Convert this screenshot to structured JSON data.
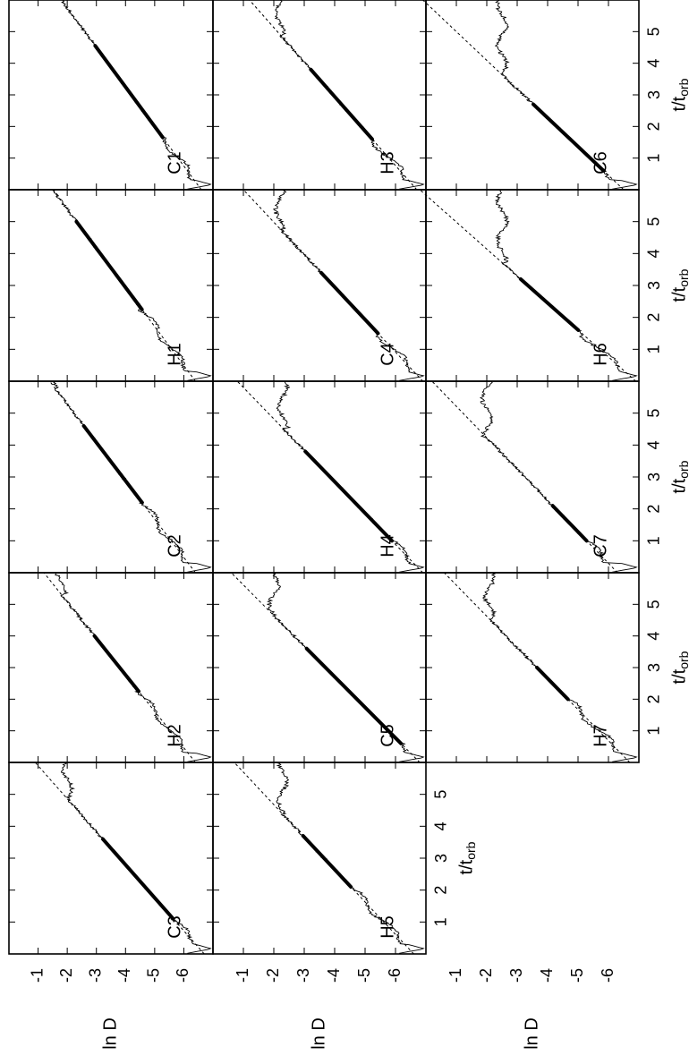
{
  "figure": {
    "ylabel": "ln D",
    "xlabel": "t/t_orb",
    "xlabel_main": "t/t",
    "xlabel_sub": "orb",
    "y_ticks": [
      "-1",
      "-2",
      "-3",
      "-4",
      "-5",
      "-6"
    ],
    "x_ticks": [
      "1",
      "2",
      "3",
      "4",
      "5"
    ],
    "orientation": "rotated 90 degrees counter-clockwise"
  },
  "chart_data": [
    {
      "type": "line",
      "label": "C1",
      "row": 0,
      "col": 0,
      "xlim": [
        0,
        6
      ],
      "ylim": [
        -7,
        0
      ],
      "fit_line": {
        "x": [
          0,
          6
        ],
        "y": [
          -6.6,
          -1.8
        ]
      },
      "bold_range": [
        1.65,
        4.55
      ],
      "plateau": -1.6,
      "has_fit_highlight": true
    },
    {
      "type": "line",
      "label": "H1",
      "row": 0,
      "col": 1,
      "xlim": [
        0,
        6
      ],
      "ylim": [
        -7,
        0
      ],
      "fit_line": {
        "x": [
          0,
          6
        ],
        "y": [
          -6.4,
          -1.5
        ]
      },
      "bold_range": [
        2.25,
        5.0
      ],
      "plateau": -1.5,
      "has_fit_highlight": true
    },
    {
      "type": "line",
      "label": "C2",
      "row": 0,
      "col": 2,
      "xlim": [
        0,
        6
      ],
      "ylim": [
        -7,
        0
      ],
      "fit_line": {
        "x": [
          0,
          6
        ],
        "y": [
          -6.4,
          -1.4
        ]
      },
      "bold_range": [
        2.2,
        4.6
      ],
      "plateau": -1.6,
      "has_fit_highlight": true
    },
    {
      "type": "line",
      "label": "H2",
      "row": 0,
      "col": 3,
      "xlim": [
        0,
        6
      ],
      "ylim": [
        -7,
        0
      ],
      "fit_line": {
        "x": [
          0,
          6
        ],
        "y": [
          -6.4,
          -1.2
        ]
      },
      "bold_range": [
        2.25,
        4.0
      ],
      "plateau": -1.8,
      "has_fit_highlight": true
    },
    {
      "type": "line",
      "label": "C3",
      "row": 0,
      "col": 4,
      "xlim": [
        0,
        6
      ],
      "ylim": [
        -7,
        0
      ],
      "fit_line": {
        "x": [
          0,
          6
        ],
        "y": [
          -6.7,
          -0.9
        ]
      },
      "bold_range": [
        1.1,
        3.6
      ],
      "plateau": -2.0,
      "has_fit_highlight": true
    },
    {
      "type": "line",
      "label": "H3",
      "row": 1,
      "col": 0,
      "xlim": [
        0,
        6
      ],
      "ylim": [
        -7,
        0
      ],
      "fit_line": {
        "x": [
          0,
          6
        ],
        "y": [
          -6.7,
          -1.2
        ]
      },
      "bold_range": [
        1.6,
        3.8
      ],
      "plateau": -2.2,
      "has_fit_highlight": true
    },
    {
      "type": "line",
      "label": "C4",
      "row": 1,
      "col": 1,
      "xlim": [
        0,
        6
      ],
      "ylim": [
        -7,
        0
      ],
      "fit_line": {
        "x": [
          0,
          6
        ],
        "y": [
          -6.9,
          -1.0
        ]
      },
      "bold_range": [
        1.5,
        3.4
      ],
      "plateau": -2.2,
      "has_fit_highlight": true
    },
    {
      "type": "line",
      "label": "H4",
      "row": 1,
      "col": 2,
      "xlim": [
        0,
        6
      ],
      "ylim": [
        -7,
        0
      ],
      "fit_line": {
        "x": [
          0,
          6
        ],
        "y": [
          -6.9,
          -0.8
        ]
      },
      "bold_range": [
        1.0,
        3.8
      ],
      "plateau": -2.3,
      "has_fit_highlight": true
    },
    {
      "type": "line",
      "label": "C5",
      "row": 1,
      "col": 3,
      "xlim": [
        0,
        6
      ],
      "ylim": [
        -7,
        0
      ],
      "fit_line": {
        "x": [
          0,
          6
        ],
        "y": [
          -6.8,
          -0.6
        ]
      },
      "bold_range": [
        0.6,
        3.6
      ],
      "plateau": -2.0,
      "has_fit_highlight": true
    },
    {
      "type": "line",
      "label": "H5",
      "row": 1,
      "col": 4,
      "xlim": [
        0,
        6
      ],
      "ylim": [
        -7,
        0
      ],
      "fit_line": {
        "x": [
          0,
          6
        ],
        "y": [
          -6.6,
          -0.7
        ]
      },
      "bold_range": [
        2.1,
        3.7
      ],
      "plateau": -2.3,
      "has_fit_highlight": true
    },
    {
      "type": "line",
      "label": "C6",
      "row": 2,
      "col": 0,
      "xlim": [
        0,
        6
      ],
      "ylim": [
        -7,
        0
      ],
      "fit_line": {
        "x": [
          0,
          6
        ],
        "y": [
          -6.5,
          0.1
        ]
      },
      "bold_range": [
        0.6,
        2.7
      ],
      "plateau": -2.5,
      "has_fit_highlight": true
    },
    {
      "type": "line",
      "label": "H6",
      "row": 2,
      "col": 1,
      "xlim": [
        0,
        6
      ],
      "ylim": [
        -7,
        0
      ],
      "fit_line": {
        "x": [
          0,
          6
        ],
        "y": [
          -6.9,
          0.2
        ]
      },
      "bold_range": [
        1.6,
        3.2
      ],
      "plateau": -2.5,
      "has_fit_highlight": true
    },
    {
      "type": "line",
      "label": "C7",
      "row": 2,
      "col": 2,
      "xlim": [
        0,
        6
      ],
      "ylim": [
        -7,
        0
      ],
      "fit_line": {
        "x": [
          0,
          6
        ],
        "y": [
          -6.3,
          -0.2
        ]
      },
      "bold_range": [
        1.0,
        2.1
      ],
      "plateau": -2.0,
      "has_fit_highlight": true
    },
    {
      "type": "line",
      "label": "H7",
      "row": 2,
      "col": 3,
      "xlim": [
        0,
        6
      ],
      "ylim": [
        -7,
        0
      ],
      "fit_line": {
        "x": [
          0,
          6
        ],
        "y": [
          -6.7,
          -0.6
        ]
      },
      "bold_range": [
        2.0,
        3.0
      ],
      "plateau": -2.1,
      "has_fit_highlight": true
    }
  ]
}
